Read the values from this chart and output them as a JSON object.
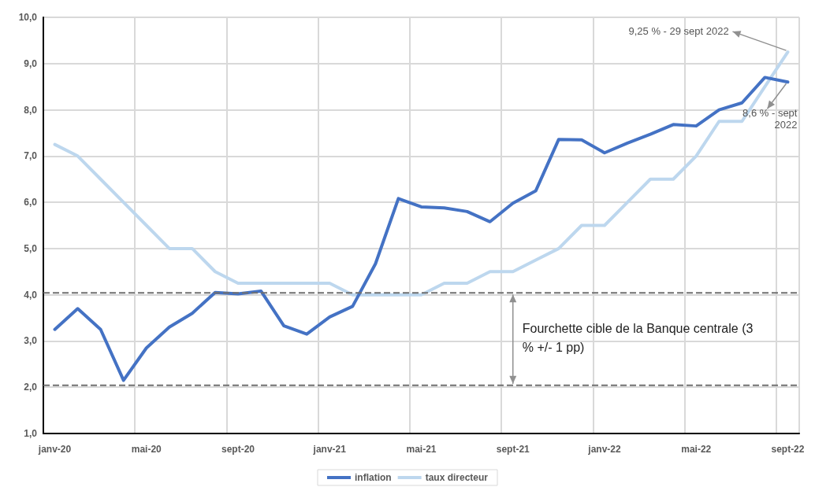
{
  "chart_data": {
    "type": "line",
    "categories": [
      "janv-20",
      null,
      null,
      null,
      "mai-20",
      null,
      null,
      null,
      "sept-20",
      null,
      null,
      null,
      "janv-21",
      null,
      null,
      null,
      "mai-21",
      null,
      null,
      null,
      "sept-21",
      null,
      null,
      null,
      "janv-22",
      null,
      null,
      null,
      "mai-22",
      null,
      null,
      null,
      "sept-22"
    ],
    "series": [
      {
        "name": "inflation",
        "color": "#4472c4",
        "values": [
          3.25,
          3.7,
          3.25,
          2.15,
          2.85,
          3.3,
          3.6,
          4.05,
          4.02,
          4.08,
          3.33,
          3.15,
          3.52,
          3.75,
          4.67,
          6.08,
          5.9,
          5.88,
          5.8,
          5.58,
          5.98,
          6.25,
          7.36,
          7.35,
          7.07,
          7.28,
          7.47,
          7.68,
          7.65,
          8.0,
          8.15,
          8.7,
          8.6
        ]
      },
      {
        "name": "taux directeur",
        "color": "#bdd7ee",
        "values": [
          7.25,
          7.0,
          6.5,
          6.0,
          5.5,
          5.0,
          5.0,
          4.5,
          4.25,
          4.25,
          4.25,
          4.25,
          4.25,
          4.0,
          4.0,
          4.0,
          4.0,
          4.25,
          4.25,
          4.5,
          4.5,
          4.75,
          5.0,
          5.5,
          5.5,
          6.0,
          6.5,
          6.5,
          7.0,
          7.75,
          7.75,
          8.5,
          9.25
        ]
      }
    ],
    "ylim": [
      1,
      10
    ],
    "yticks": [
      {
        "value": 1,
        "label": "1,0"
      },
      {
        "value": 2,
        "label": "2,0"
      },
      {
        "value": 3,
        "label": "3,0"
      },
      {
        "value": 4,
        "label": "4,0"
      },
      {
        "value": 5,
        "label": "5,0"
      },
      {
        "value": 6,
        "label": "6,0"
      },
      {
        "value": 7,
        "label": "7,0"
      },
      {
        "value": 8,
        "label": "8,0"
      },
      {
        "value": 9,
        "label": "9,0"
      },
      {
        "value": 10,
        "label": "10,0"
      }
    ],
    "grid": true,
    "legend": "bottom",
    "marker": "none",
    "line_style": "solid",
    "ref_lines": [
      {
        "axis": "y",
        "value": 4.04,
        "color": "#707070",
        "line_style": "dashed"
      },
      {
        "axis": "y",
        "value": 2.04,
        "color": "#707070",
        "line_style": "dashed"
      }
    ],
    "annotations": [
      {
        "text": "9,25 % - 29 sept 2022",
        "x": "sept-22",
        "y": 9.25
      },
      {
        "text": "8,6 % - sept 2022",
        "x": "sept-22",
        "y": 8.6
      },
      "Fourchette cible de la Banque centrale (3 % +/- 1 pp)"
    ]
  }
}
